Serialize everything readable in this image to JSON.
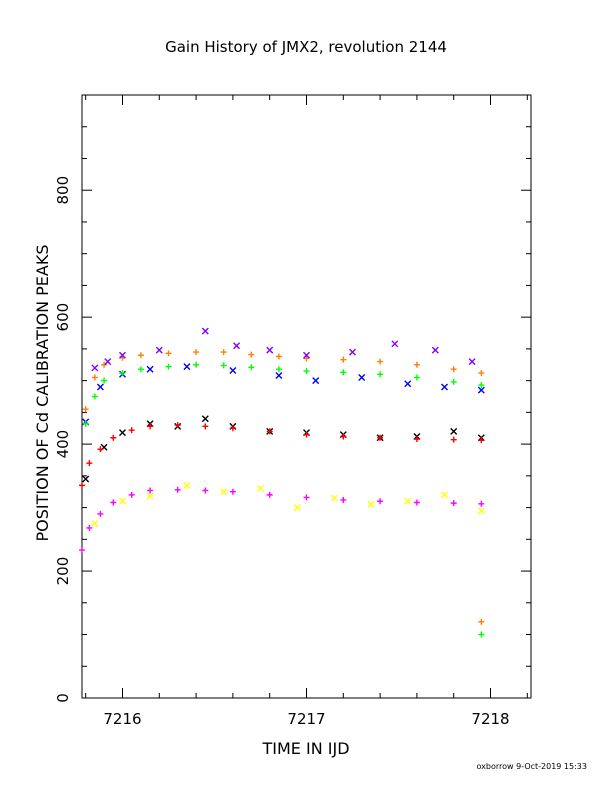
{
  "chart_data": {
    "type": "scatter",
    "title": "Gain History of JMX2, revolution 2144",
    "xlabel": "TIME IN IJD",
    "ylabel": "POSITION OF Cd CALIBRATION PEAKS",
    "footer": "oxborrow  9-Oct-2019 15:33",
    "xlim": [
      7215.78,
      7218.22
    ],
    "ylim": [
      0,
      950
    ],
    "xticks": [
      7216,
      7217,
      7218
    ],
    "yticks": [
      0,
      200,
      400,
      600,
      800
    ],
    "grid": false,
    "series": [
      {
        "color": "#ff7f00",
        "marker": "plus",
        "x": [
          7215.8,
          7215.85,
          7215.9,
          7216.0,
          7216.1,
          7216.25,
          7216.4,
          7216.55,
          7216.7,
          7216.85,
          7217.0,
          7217.2,
          7217.4,
          7217.6,
          7217.8,
          7217.95
        ],
        "y": [
          455,
          505,
          525,
          536,
          540,
          543,
          545,
          545,
          541,
          538,
          535,
          533,
          530,
          525,
          518,
          512
        ]
      },
      {
        "color": "#7f00ff",
        "marker": "x",
        "x": [
          7215.85,
          7215.92,
          7216.0,
          7216.2,
          7216.45,
          7216.62,
          7216.8,
          7217.0,
          7217.25,
          7217.48,
          7217.7,
          7217.9
        ],
        "y": [
          520,
          530,
          540,
          548,
          578,
          555,
          548,
          540,
          545,
          558,
          548,
          530
        ]
      },
      {
        "color": "#0000ff",
        "marker": "x",
        "x": [
          7215.8,
          7215.88,
          7216.0,
          7216.15,
          7216.35,
          7216.6,
          7216.85,
          7217.05,
          7217.3,
          7217.55,
          7217.75,
          7217.95
        ],
        "y": [
          435,
          490,
          510,
          518,
          522,
          516,
          508,
          500,
          505,
          495,
          490,
          485
        ]
      },
      {
        "color": "#00ff00",
        "marker": "plus",
        "x": [
          7215.8,
          7215.85,
          7215.9,
          7216.0,
          7216.1,
          7216.25,
          7216.4,
          7216.55,
          7216.7,
          7216.85,
          7217.0,
          7217.2,
          7217.4,
          7217.6,
          7217.8,
          7217.95
        ],
        "y": [
          432,
          475,
          500,
          512,
          518,
          522,
          525,
          524,
          521,
          518,
          515,
          513,
          510,
          505,
          498,
          493
        ]
      },
      {
        "color": "#000000",
        "marker": "x",
        "x": [
          7215.8,
          7215.9,
          7216.0,
          7216.15,
          7216.3,
          7216.45,
          7216.6,
          7216.8,
          7217.0,
          7217.2,
          7217.4,
          7217.6,
          7217.8,
          7217.95
        ],
        "y": [
          345,
          395,
          418,
          432,
          428,
          440,
          428,
          420,
          418,
          415,
          410,
          412,
          420,
          410
        ]
      },
      {
        "color": "#ff0000",
        "marker": "plus",
        "x": [
          7215.78,
          7215.82,
          7215.88,
          7215.95,
          7216.05,
          7216.15,
          7216.3,
          7216.45,
          7216.6,
          7216.8,
          7217.0,
          7217.2,
          7217.4,
          7217.6,
          7217.8,
          7217.95
        ],
        "y": [
          335,
          370,
          392,
          410,
          422,
          428,
          430,
          428,
          425,
          420,
          415,
          412,
          410,
          408,
          407,
          406
        ]
      },
      {
        "color": "#ffff00",
        "marker": "x",
        "x": [
          7215.85,
          7216.0,
          7216.15,
          7216.35,
          7216.55,
          7216.75,
          7216.95,
          7217.15,
          7217.35,
          7217.55,
          7217.75,
          7217.95
        ],
        "y": [
          275,
          310,
          318,
          335,
          325,
          330,
          300,
          315,
          305,
          310,
          320,
          295
        ]
      },
      {
        "color": "#ff00ff",
        "marker": "plus",
        "x": [
          7215.78,
          7215.82,
          7215.88,
          7215.95,
          7216.05,
          7216.15,
          7216.3,
          7216.45,
          7216.6,
          7216.8,
          7217.0,
          7217.2,
          7217.4,
          7217.6,
          7217.8,
          7217.95
        ],
        "y": [
          233,
          268,
          290,
          308,
          320,
          327,
          328,
          327,
          325,
          320,
          316,
          312,
          310,
          308,
          307,
          306
        ]
      },
      {
        "color": "#ff7f00",
        "marker": "plus",
        "x": [
          7217.95
        ],
        "y": [
          120
        ]
      },
      {
        "color": "#00ff00",
        "marker": "plus",
        "x": [
          7217.95
        ],
        "y": [
          100
        ]
      }
    ]
  }
}
